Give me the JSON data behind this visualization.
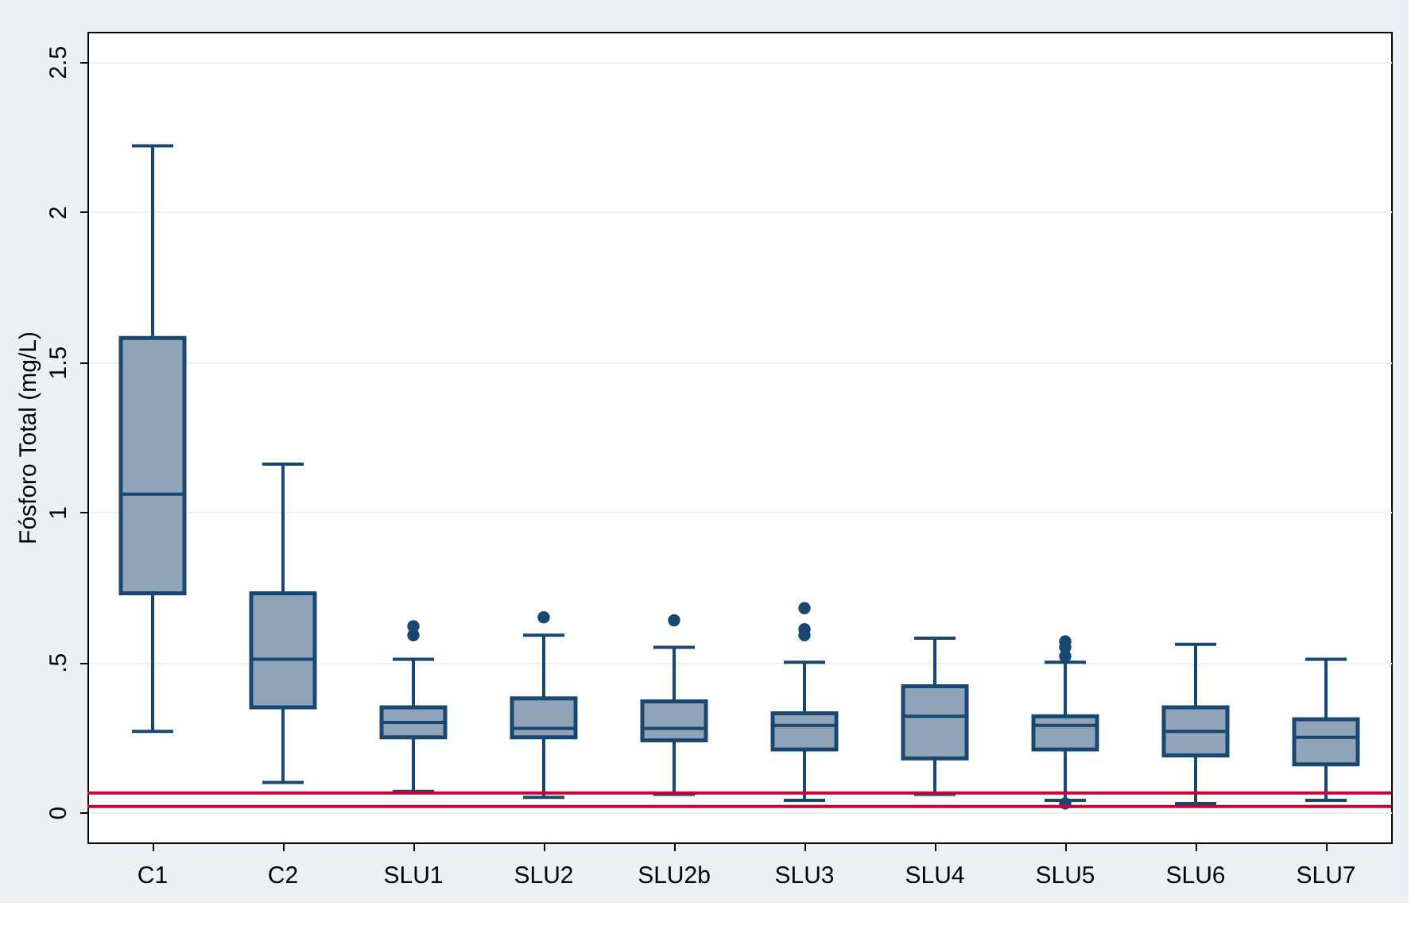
{
  "chart_data": {
    "type": "box",
    "ylabel": "Fósforo Total (mg/L)",
    "categories": [
      "C1",
      "C2",
      "SLU1",
      "SLU2",
      "SLU2b",
      "SLU3",
      "SLU4",
      "SLU5",
      "SLU6",
      "SLU7"
    ],
    "series": [
      {
        "color": "#8fa4b8",
        "boxes": [
          {
            "low": 0.27,
            "q1": 0.73,
            "median": 1.06,
            "q3": 1.58,
            "high": 2.22
          },
          {
            "low": 0.1,
            "q1": 0.35,
            "median": 0.51,
            "q3": 0.73,
            "high": 1.16
          },
          {
            "low": 0.07,
            "q1": 0.25,
            "median": 0.3,
            "q3": 0.35,
            "high": 0.51,
            "outliers": [
              0.62,
              0.59
            ]
          },
          {
            "low": 0.05,
            "q1": 0.25,
            "median": 0.28,
            "q3": 0.38,
            "high": 0.59,
            "outliers": [
              0.65
            ]
          },
          {
            "low": 0.06,
            "q1": 0.24,
            "median": 0.28,
            "q3": 0.37,
            "high": 0.55,
            "outliers": [
              0.64
            ]
          },
          {
            "low": 0.04,
            "q1": 0.21,
            "median": 0.29,
            "q3": 0.33,
            "high": 0.5,
            "outliers": [
              0.68,
              0.61,
              0.59
            ]
          },
          {
            "low": 0.06,
            "q1": 0.18,
            "median": 0.32,
            "q3": 0.42,
            "high": 0.58
          },
          {
            "low": 0.04,
            "q1": 0.21,
            "median": 0.29,
            "q3": 0.32,
            "high": 0.5,
            "outliers": [
              0.57,
              0.55,
              0.52,
              0.03
            ]
          },
          {
            "low": 0.03,
            "q1": 0.19,
            "median": 0.27,
            "q3": 0.35,
            "high": 0.56
          },
          {
            "low": 0.04,
            "q1": 0.16,
            "median": 0.25,
            "q3": 0.31,
            "high": 0.51
          }
        ]
      }
    ],
    "ylim": [
      -0.1,
      2.6
    ],
    "yticks": [
      0,
      {
        "value": 0.5,
        "label": ".5"
      },
      1,
      1.5,
      2,
      2.5
    ],
    "ref_lines": [
      {
        "axis": "y",
        "value": 0.065,
        "color": "#c10534"
      },
      {
        "axis": "y",
        "value": 0.02,
        "color": "#c10534"
      }
    ],
    "grid": "y"
  }
}
